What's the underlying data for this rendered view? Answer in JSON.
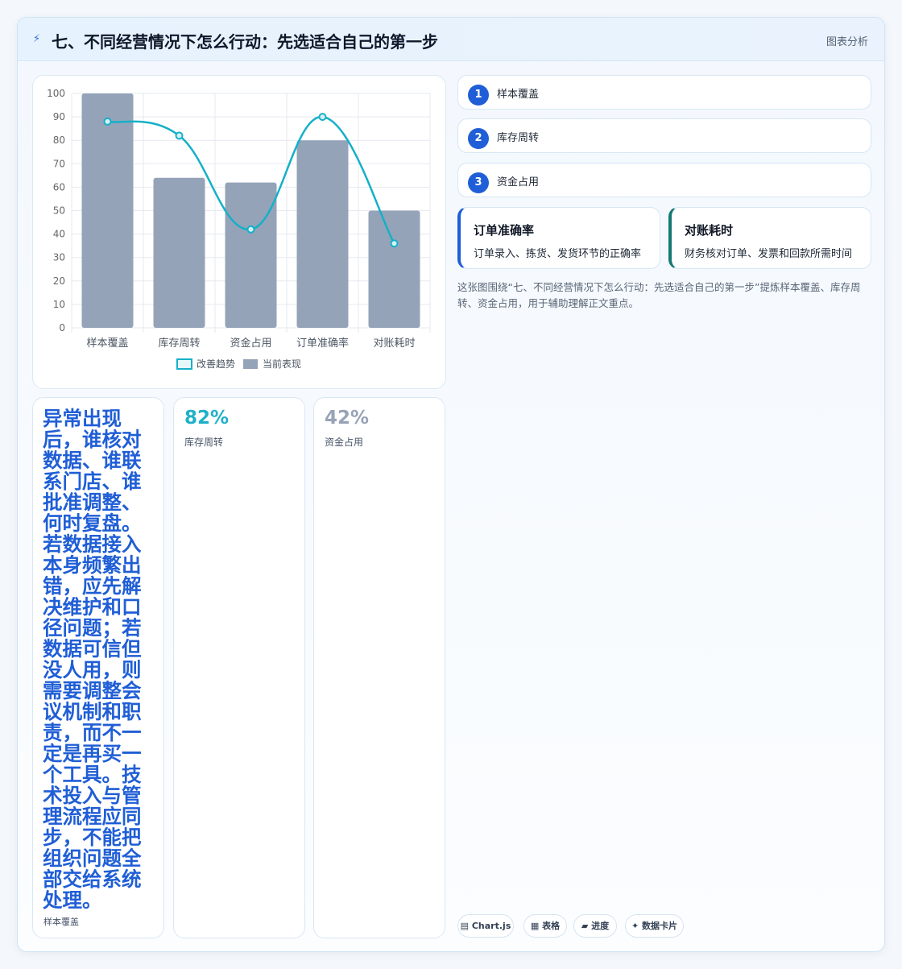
{
  "header": {
    "icon": "lightning-icon",
    "title": "七、不同经营情况下怎么行动：先选适合自己的第一步",
    "tag": "图表分析"
  },
  "chart_data": {
    "type": "bar",
    "categories": [
      "样本覆盖",
      "库存周转",
      "资金占用",
      "订单准确率",
      "对账耗时"
    ],
    "ylim": [
      0,
      100
    ],
    "yticks": [
      0,
      10,
      20,
      30,
      40,
      50,
      60,
      70,
      80,
      90,
      100
    ],
    "grid": true,
    "legend": "bottom",
    "series": [
      {
        "name": "改善趋势",
        "kind": "line",
        "color": "#15b0c8",
        "values": [
          88,
          82,
          42,
          90,
          36
        ]
      },
      {
        "name": "当前表现",
        "kind": "bar",
        "color": "#94a3b8",
        "values": [
          100,
          64,
          62,
          80,
          50
        ]
      }
    ]
  },
  "steps": [
    {
      "num": "1",
      "label": "样本覆盖"
    },
    {
      "num": "2",
      "label": "库存周转"
    },
    {
      "num": "3",
      "label": "资金占用"
    }
  ],
  "metrics": [
    {
      "title": "订单准确率",
      "desc": "订单录入、拣货、发货环节的正确率"
    },
    {
      "title": "对账耗时",
      "desc": "财务核对订单、发票和回款所需时间"
    }
  ],
  "summary": "这张图围绕“七、不同经营情况下怎么行动：先选适合自己的第一步”提炼样本覆盖、库存周转、资金占用，用于辅助理解正文重点。",
  "stats": [
    {
      "value": "异常出现后，谁核对数据、谁联系门店、谁批准调整、何时复盘。若数据接入本身频繁出错，应先解决维护和口径问题；若数据可信但没人用，则需要调整会议机制和职责，而不一定是再买一个工具。技术投入与管理流程应同步，不能把组织问题全部交给系统处理。",
      "label": "样本覆盖"
    },
    {
      "value": "82%",
      "label": "库存周转"
    },
    {
      "value": "42%",
      "label": "资金占用"
    }
  ],
  "chips": [
    {
      "icon": "▤",
      "label": "Chart.js"
    },
    {
      "icon": "▦",
      "label": "表格"
    },
    {
      "icon": "▰",
      "label": "进度"
    },
    {
      "icon": "✦",
      "label": "数据卡片"
    }
  ]
}
